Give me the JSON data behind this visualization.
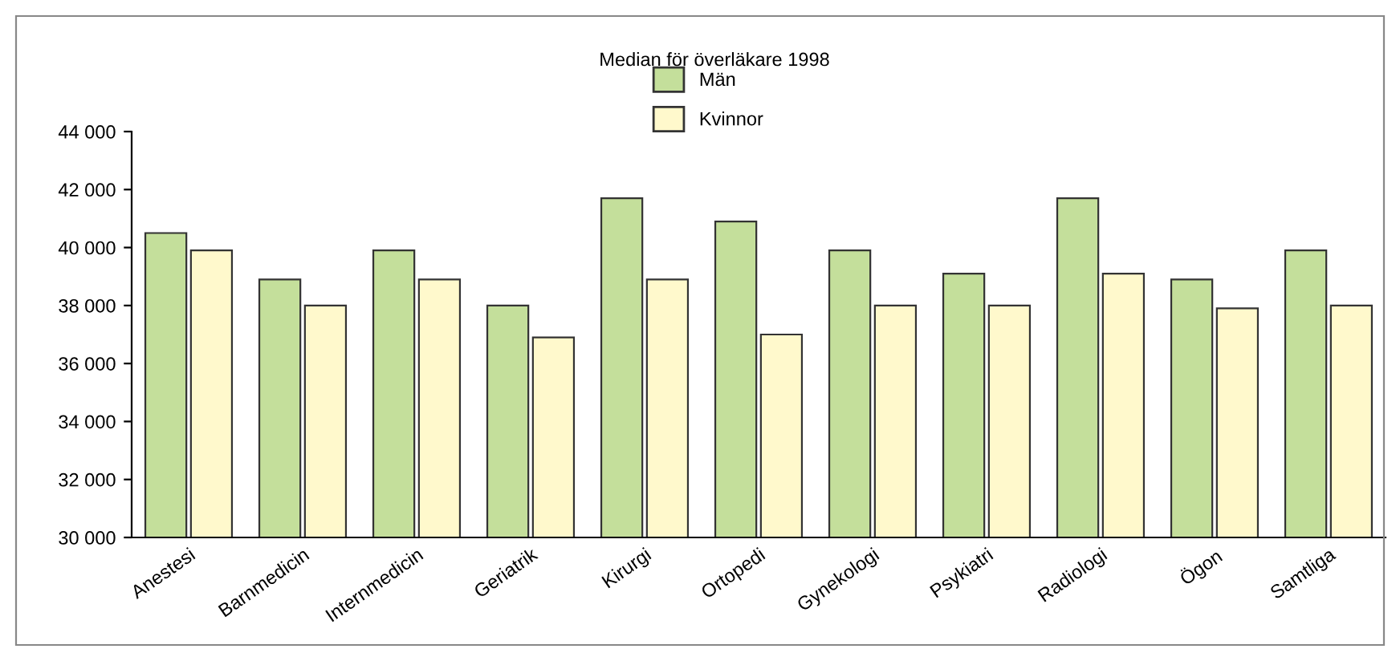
{
  "chart_data": {
    "type": "bar",
    "title": "Median för överläkare 1998",
    "categories": [
      "Anestesi",
      "Barnmedicin",
      "Internmedicin",
      "Geriatrik",
      "Kirurgi",
      "Ortopedi",
      "Gynekologi",
      "Psykiatri",
      "Radiologi",
      "Ögon",
      "Samtliga"
    ],
    "series": [
      {
        "name": "Män",
        "color": "#c4df9b",
        "values": [
          40500,
          38900,
          39900,
          38000,
          41700,
          40900,
          39900,
          39100,
          41700,
          38900,
          39900
        ]
      },
      {
        "name": "Kvinnor",
        "color": "#fff9cc",
        "values": [
          39900,
          38000,
          38900,
          36900,
          38900,
          37000,
          38000,
          38000,
          39100,
          37900,
          38000
        ]
      }
    ],
    "ylim": [
      30000,
      44000
    ],
    "yticks": [
      {
        "value": 30000,
        "label": "30 000"
      },
      {
        "value": 32000,
        "label": "32 000"
      },
      {
        "value": 34000,
        "label": "34 000"
      },
      {
        "value": 36000,
        "label": "36 000"
      },
      {
        "value": 38000,
        "label": "38 000"
      },
      {
        "value": 40000,
        "label": "40 000"
      },
      {
        "value": 42000,
        "label": "42 000"
      },
      {
        "value": 44000,
        "label": "44 000"
      }
    ],
    "grid": false,
    "legend": "top"
  }
}
